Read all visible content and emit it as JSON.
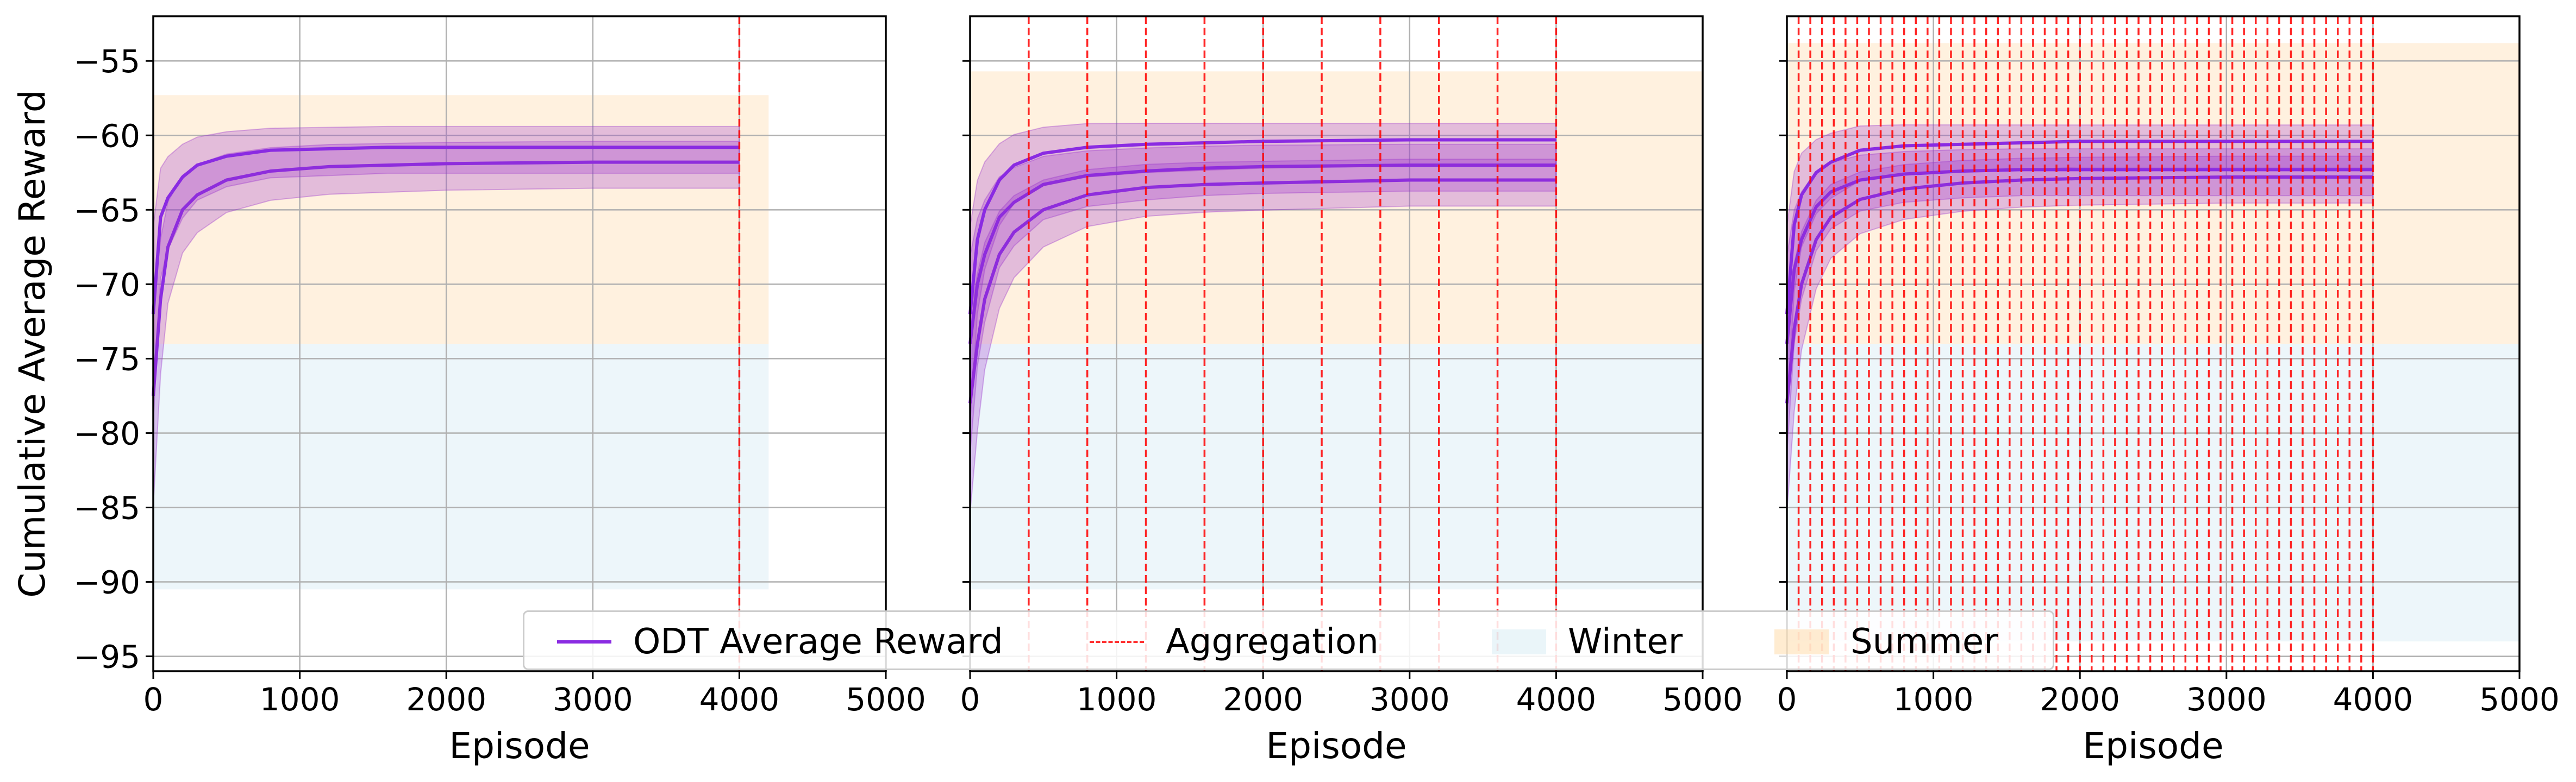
{
  "chart_data": [
    {
      "type": "line",
      "panel": "left",
      "xlabel": "Episode",
      "ylabel": "Cumulative Average Reward",
      "xlim": [
        0,
        5000
      ],
      "ylim": [
        -96,
        -52
      ],
      "xticks": [
        0,
        1000,
        2000,
        3000,
        4000,
        5000
      ],
      "yticks": [
        -55,
        -60,
        -65,
        -70,
        -75,
        -80,
        -85,
        -90,
        -95
      ],
      "grid": true,
      "winter_band": {
        "x": [
          0,
          4200
        ],
        "y": [
          -90.5,
          -74
        ]
      },
      "summer_band": {
        "x": [
          0,
          4200
        ],
        "y": [
          -74,
          -57.3
        ]
      },
      "aggregation_episodes": [
        4000
      ],
      "series": [
        {
          "name": "ODT Average Reward",
          "x": [
            0,
            50,
            100,
            200,
            300,
            500,
            800,
            1200,
            1600,
            2000,
            3000,
            4000
          ],
          "values": [
            -77.5,
            -71,
            -67.5,
            -65,
            -64,
            -63,
            -62.4,
            -62.1,
            -62.0,
            -61.9,
            -61.8,
            -61.8
          ],
          "band": [
            -89,
            -60
          ]
        },
        {
          "name": "ODT Average Reward",
          "x": [
            0,
            50,
            100,
            200,
            300,
            500,
            800,
            1200,
            1600,
            2000,
            3000,
            4000
          ],
          "values": [
            -72,
            -65.5,
            -64.2,
            -62.8,
            -62,
            -61.4,
            -61.0,
            -60.9,
            -60.8,
            -60.8,
            -60.8,
            -60.8
          ],
          "band": [
            -84,
            -59.3
          ]
        }
      ]
    },
    {
      "type": "line",
      "panel": "middle",
      "xlabel": "Episode",
      "xlim": [
        0,
        5000
      ],
      "ylim": [
        -96,
        -52
      ],
      "xticks": [
        0,
        1000,
        2000,
        3000,
        4000,
        5000
      ],
      "yticks": [
        -55,
        -60,
        -65,
        -70,
        -75,
        -80,
        -85,
        -90,
        -95
      ],
      "grid": true,
      "winter_band": {
        "x": [
          0,
          5000
        ],
        "y": [
          -90.5,
          -74
        ]
      },
      "summer_band": {
        "x": [
          0,
          5000
        ],
        "y": [
          -74,
          -55.7
        ]
      },
      "aggregation_episodes": [
        400,
        800,
        1200,
        1600,
        2000,
        2400,
        2800,
        3200,
        3600,
        4000
      ],
      "series": [
        {
          "name": "ODT Average Reward",
          "x": [
            0,
            50,
            100,
            200,
            300,
            500,
            800,
            1200,
            1600,
            2000,
            3000,
            4000
          ],
          "values": [
            -78,
            -74,
            -71,
            -68,
            -66.5,
            -65,
            -64,
            -63.5,
            -63.3,
            -63.2,
            -63.0,
            -63.0
          ],
          "band": [
            -89,
            -61
          ]
        },
        {
          "name": "ODT Average Reward",
          "x": [
            0,
            50,
            100,
            200,
            300,
            500,
            800,
            1200,
            1600,
            2000,
            3000,
            4000
          ],
          "values": [
            -74,
            -70,
            -68,
            -65.5,
            -64.5,
            -63.3,
            -62.7,
            -62.4,
            -62.2,
            -62.1,
            -62.0,
            -62.0
          ],
          "band": [
            -87,
            -60.5
          ]
        },
        {
          "name": "ODT Average Reward",
          "x": [
            0,
            50,
            100,
            200,
            300,
            500,
            800,
            1200,
            1600,
            2000,
            3000,
            4000
          ],
          "values": [
            -72,
            -67,
            -65,
            -63,
            -62,
            -61.2,
            -60.8,
            -60.6,
            -60.5,
            -60.4,
            -60.3,
            -60.3
          ],
          "band": [
            -84,
            -59.2
          ]
        }
      ]
    },
    {
      "type": "line",
      "panel": "right",
      "xlabel": "Episode",
      "xlim": [
        0,
        5000
      ],
      "ylim": [
        -96,
        -52
      ],
      "xticks": [
        0,
        1000,
        2000,
        3000,
        4000,
        5000
      ],
      "yticks": [
        -55,
        -60,
        -65,
        -70,
        -75,
        -80,
        -85,
        -90,
        -95
      ],
      "grid": true,
      "winter_band": {
        "x": [
          0,
          5000
        ],
        "y": [
          -94,
          -74
        ]
      },
      "summer_band": {
        "x": [
          0,
          5000
        ],
        "y": [
          -74,
          -53.8
        ]
      },
      "aggregation_episodes": [
        80,
        160,
        240,
        320,
        400,
        480,
        560,
        640,
        720,
        800,
        880,
        960,
        1040,
        1120,
        1200,
        1280,
        1360,
        1440,
        1520,
        1600,
        1680,
        1760,
        1840,
        1920,
        2000,
        2080,
        2160,
        2240,
        2320,
        2400,
        2480,
        2560,
        2640,
        2720,
        2800,
        2880,
        2960,
        3040,
        3120,
        3200,
        3280,
        3360,
        3440,
        3520,
        3600,
        3680,
        3760,
        3840,
        3920,
        4000
      ],
      "series": [
        {
          "name": "ODT Average Reward",
          "x": [
            0,
            50,
            100,
            200,
            300,
            500,
            800,
            1200,
            1600,
            2000,
            3000,
            4000
          ],
          "values": [
            -78,
            -73,
            -70,
            -67,
            -65.5,
            -64.3,
            -63.6,
            -63.2,
            -63.0,
            -62.9,
            -62.8,
            -62.8
          ],
          "band": [
            -89,
            -61.2
          ]
        },
        {
          "name": "ODT Average Reward",
          "x": [
            0,
            50,
            100,
            200,
            300,
            500,
            800,
            1200,
            1600,
            2000,
            3000,
            4000
          ],
          "values": [
            -74,
            -69,
            -67,
            -64.8,
            -63.8,
            -63,
            -62.6,
            -62.4,
            -62.3,
            -62.3,
            -62.3,
            -62.3
          ],
          "band": [
            -87,
            -60.8
          ]
        },
        {
          "name": "ODT Average Reward",
          "x": [
            0,
            50,
            100,
            200,
            300,
            500,
            800,
            1200,
            1600,
            2000,
            3000,
            4000
          ],
          "values": [
            -72,
            -66,
            -64,
            -62.5,
            -61.8,
            -61,
            -60.7,
            -60.6,
            -60.5,
            -60.4,
            -60.4,
            -60.4
          ],
          "band": [
            -84,
            -59.3
          ]
        }
      ]
    }
  ],
  "legend": {
    "items": [
      {
        "label": "ODT Average Reward",
        "kind": "line",
        "color": "#8a2be2"
      },
      {
        "label": "Aggregation",
        "kind": "dash",
        "color": "#ff0000"
      },
      {
        "label": "Winter",
        "kind": "patch",
        "color": "#add8e6"
      },
      {
        "label": "Summer",
        "kind": "patch",
        "color": "#ffd59a"
      }
    ]
  },
  "colors": {
    "series": "#8a2be2",
    "band": "#9932cc",
    "aggregation": "#ff0000",
    "winter": "#add8e6",
    "summer": "#ffd59a",
    "grid": "#b0b0b0"
  }
}
